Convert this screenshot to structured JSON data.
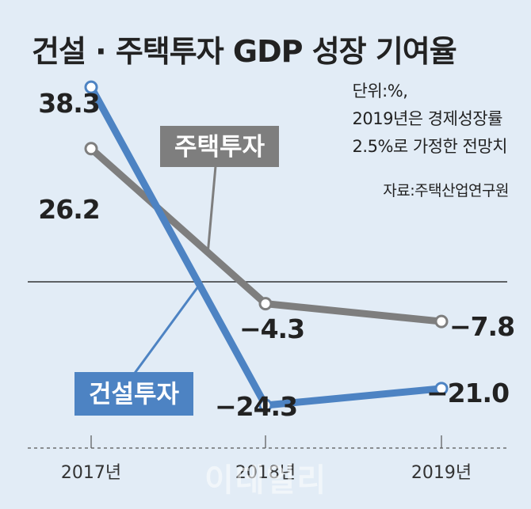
{
  "chart_data": {
    "type": "line",
    "title": "건설 · 주택투자 GDP 성장 기여율",
    "note_lines": [
      "단위:%,",
      "2019년은 경제성장률",
      "2.5%로 가정한 전망치"
    ],
    "source": "자료:주택산업연구원",
    "categories": [
      "2017년",
      "2018년",
      "2019년"
    ],
    "series": [
      {
        "name": "건설투자",
        "values": [
          38.3,
          -24.3,
          -21.0
        ],
        "labels": [
          "38.3",
          "−24.3",
          "−21.0"
        ],
        "color": "#4d83c3"
      },
      {
        "name": "주택투자",
        "values": [
          26.2,
          -4.3,
          -7.8
        ],
        "labels": [
          "26.2",
          "−4.3",
          "−7.8"
        ],
        "color": "#7e7e7e"
      }
    ],
    "ylim": [
      -30,
      40
    ],
    "zero_line": true,
    "watermark": "이데일리"
  }
}
